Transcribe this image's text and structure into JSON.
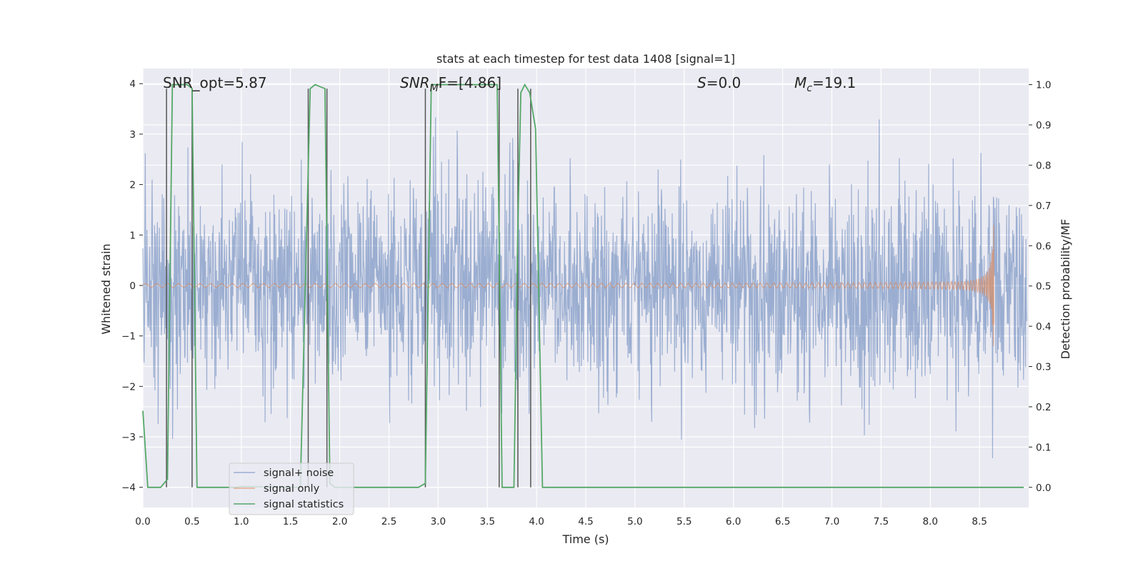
{
  "chart_data": {
    "type": "line",
    "title": "stats at each timestep for test data 1408 [signal=1]",
    "xlabel": "Time (s)",
    "ylabel_left": "Whitened strain",
    "ylabel_right": "Detection probability/MF",
    "xlim": [
      0.0,
      9.0
    ],
    "ylim_left": [
      -4.4,
      4.3
    ],
    "ylim_right": [
      -0.05,
      1.04
    ],
    "x_ticks": [
      "0.0",
      "0.5",
      "1.0",
      "1.5",
      "2.0",
      "2.5",
      "3.0",
      "3.5",
      "4.0",
      "4.5",
      "5.0",
      "5.5",
      "6.0",
      "6.5",
      "7.0",
      "7.5",
      "8.0",
      "8.5"
    ],
    "x_tick_values": [
      0.0,
      0.5,
      1.0,
      1.5,
      2.0,
      2.5,
      3.0,
      3.5,
      4.0,
      4.5,
      5.0,
      5.5,
      6.0,
      6.5,
      7.0,
      7.5,
      8.0,
      8.5
    ],
    "y_ticks_left": [
      "−4",
      "−3",
      "−2",
      "−1",
      "0",
      "1",
      "2",
      "3",
      "4"
    ],
    "y_tick_values_left": [
      -4,
      -3,
      -2,
      -1,
      0,
      1,
      2,
      3,
      4
    ],
    "y_ticks_right": [
      "0.0",
      "0.1",
      "0.2",
      "0.3",
      "0.4",
      "0.5",
      "0.6",
      "0.7",
      "0.8",
      "0.9",
      "1.0"
    ],
    "y_tick_values_right": [
      0.0,
      0.1,
      0.2,
      0.3,
      0.4,
      0.5,
      0.6,
      0.7,
      0.8,
      0.9,
      1.0
    ],
    "annotations": {
      "snr_opt": "SNR_opt=5.87",
      "snr_mf_main": "SNR",
      "snr_mf_sub": "M",
      "snr_mf_rest": "F=[4.86]",
      "s_var": "S",
      "s_rest": "=0.0",
      "mc_var": "M",
      "mc_sub": "c",
      "mc_rest": "=19.1"
    },
    "legend": {
      "position": "lower-left",
      "entries": [
        "signal+ noise",
        "signal only",
        "signal statistics"
      ]
    },
    "series": [
      {
        "name": "signal+ noise",
        "axis": "left",
        "color": "#4c72b0",
        "description_values": "whitened strain noise, roughly within -2.8..3.8"
      },
      {
        "name": "signal only",
        "axis": "left",
        "color": "#dd8452",
        "chirp_end_time": 8.65,
        "chirp_peak_amplitude": 1.2
      },
      {
        "name": "signal statistics",
        "axis": "right",
        "color": "#55a868",
        "x": [
          0.0,
          0.05,
          0.18,
          0.25,
          0.3,
          0.45,
          0.5,
          0.55,
          0.95,
          1.0,
          1.6,
          1.7,
          1.75,
          1.85,
          1.9,
          1.95,
          2.0,
          2.8,
          2.87,
          2.93,
          2.96,
          3.6,
          3.65,
          3.7,
          3.77,
          3.81,
          3.84,
          3.88,
          3.93,
          3.99,
          4.06,
          8.95
        ],
        "values": [
          0.19,
          0.0,
          0.0,
          0.02,
          1.0,
          1.0,
          0.99,
          0.0,
          0.0,
          0.002,
          0.0,
          0.99,
          1.0,
          0.99,
          0.01,
          0.0,
          0.0,
          0.0,
          0.01,
          1.0,
          1.0,
          1.0,
          0.0,
          0.0,
          0.0,
          0.65,
          0.98,
          1.0,
          0.98,
          0.89,
          0.0,
          0.0
        ]
      }
    ],
    "vertical_markers": [
      0.24,
      0.5,
      1.68,
      1.87,
      2.87,
      3.62,
      3.81,
      3.94
    ]
  }
}
